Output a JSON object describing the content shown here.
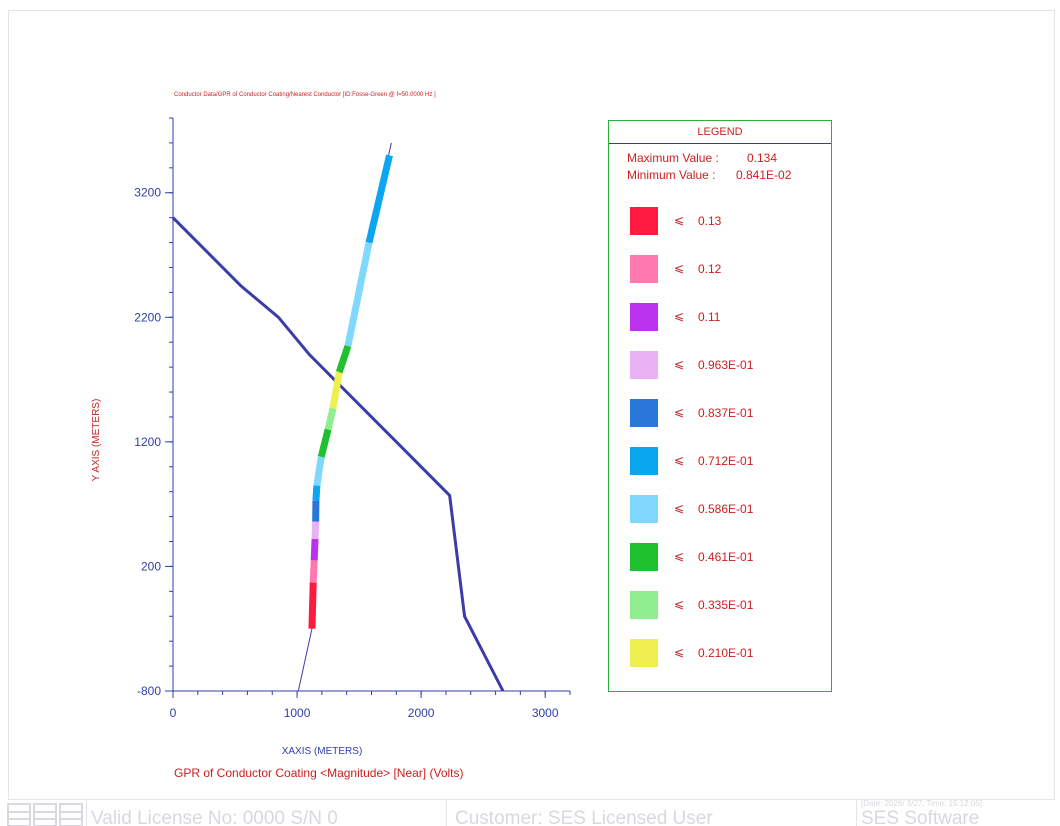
{
  "colors": {
    "axis": "#2f3fa8",
    "text_red": "#cc1f1f",
    "conductor": "#3c3ca8",
    "legend_border": "#2fae3a"
  },
  "chart_data": {
    "type": "line",
    "title": "Conductor Data/GPR of Conductor Coating/Nearest Conductor [ID:Fosse-Green @ f=50.0000 Hz ]",
    "xlabel": "XAXIS (METERS)",
    "ylabel": "Y AXIS  (METERS)",
    "subtitle": "GPR of Conductor Coating <Magnitude> [Near] (Volts)",
    "xlim": [
      0,
      3200
    ],
    "ylim": [
      -800,
      3800
    ],
    "x_ticks": [
      0,
      1000,
      2000,
      3000
    ],
    "y_ticks": [
      -800,
      200,
      1200,
      2200,
      3200
    ],
    "grid": false,
    "series": [
      {
        "points": [
          [
            0,
            3000
          ],
          [
            550,
            2450
          ],
          [
            850,
            2200
          ],
          [
            1100,
            1900
          ],
          [
            1400,
            1600
          ],
          [
            1800,
            1200
          ],
          [
            2230,
            770
          ],
          [
            2350,
            -200
          ],
          [
            2660,
            -800
          ]
        ]
      },
      {
        "points": [
          [
            1010,
            -800
          ],
          [
            1120,
            -300
          ],
          [
            1150,
            300
          ],
          [
            1170,
            800
          ],
          [
            1220,
            1200
          ],
          [
            1340,
            1750
          ],
          [
            1580,
            2800
          ],
          [
            1760,
            3600
          ]
        ]
      }
    ],
    "segments": [
      {
        "from": [
          1120,
          -300
        ],
        "to": [
          1130,
          70
        ],
        "bin": 0
      },
      {
        "from": [
          1130,
          70
        ],
        "to": [
          1138,
          250
        ],
        "bin": 1
      },
      {
        "from": [
          1138,
          250
        ],
        "to": [
          1145,
          420
        ],
        "bin": 2
      },
      {
        "from": [
          1145,
          420
        ],
        "to": [
          1150,
          560
        ],
        "bin": 3
      },
      {
        "from": [
          1150,
          560
        ],
        "to": [
          1152,
          730
        ],
        "bin": 4
      },
      {
        "from": [
          1152,
          730
        ],
        "to": [
          1160,
          850
        ],
        "bin": 5
      },
      {
        "from": [
          1160,
          850
        ],
        "to": [
          1195,
          1080
        ],
        "bin": 6
      },
      {
        "from": [
          1195,
          1080
        ],
        "to": [
          1250,
          1300
        ],
        "bin": 7
      },
      {
        "from": [
          1250,
          1300
        ],
        "to": [
          1290,
          1470
        ],
        "bin": 8
      },
      {
        "from": [
          1290,
          1470
        ],
        "to": [
          1340,
          1760
        ],
        "bin": 9
      },
      {
        "from": [
          1340,
          1760
        ],
        "to": [
          1410,
          1970
        ],
        "bin": 7
      },
      {
        "from": [
          1410,
          1970
        ],
        "to": [
          1580,
          2800
        ],
        "bin": 6
      },
      {
        "from": [
          1580,
          2800
        ],
        "to": [
          1745,
          3500
        ],
        "bin": 5
      }
    ]
  },
  "legend": {
    "title": "LEGEND",
    "max_label": "Maximum Value :",
    "max_value": "0.134",
    "min_label": "Minimum Value :",
    "min_value": "0.841E-02",
    "symbol": "⩽",
    "bins": [
      {
        "value": "0.13",
        "color": "#ff1a40"
      },
      {
        "value": "0.12",
        "color": "#ff78b0"
      },
      {
        "value": "0.11",
        "color": "#bb33ee"
      },
      {
        "value": "0.963E-01",
        "color": "#e8b2f4"
      },
      {
        "value": "0.837E-01",
        "color": "#2a77dc"
      },
      {
        "value": "0.712E-01",
        "color": "#0aa6f0"
      },
      {
        "value": "0.586E-01",
        "color": "#80d8ff"
      },
      {
        "value": "0.461E-01",
        "color": "#1fc12f"
      },
      {
        "value": "0.335E-01",
        "color": "#90ee90"
      },
      {
        "value": "0.210E-01",
        "color": "#efef50"
      }
    ]
  },
  "footer": {
    "license": "Valid License No: 0000 S/N 0",
    "customer": "Customer: SES Licensed User",
    "date": "[Date: 2026/ 3/27, Time: 15:12:05]",
    "company": "SES Software"
  }
}
